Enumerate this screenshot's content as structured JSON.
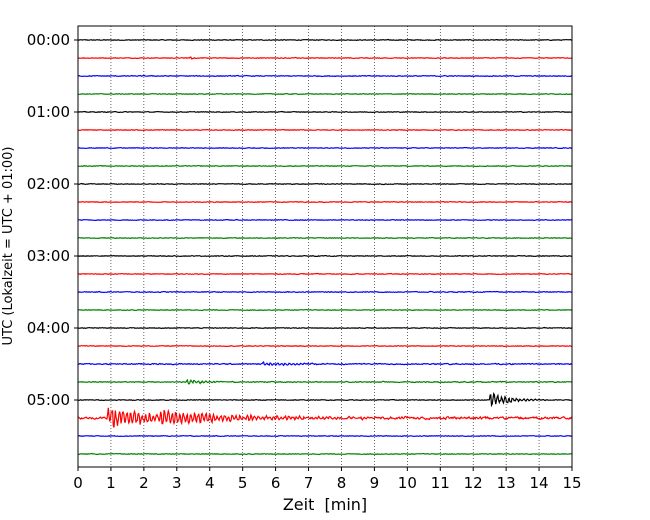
{
  "chart_data": {
    "type": "line",
    "title": "",
    "xlabel": "Zeit  [min]",
    "ylabel": "UTC (Lokalzeit = UTC + 01:00)",
    "xlim": [
      0,
      15
    ],
    "x_ticks": [
      0,
      1,
      2,
      3,
      4,
      5,
      6,
      7,
      8,
      9,
      10,
      11,
      12,
      13,
      14,
      15
    ],
    "grid": "vertical dotted",
    "colors": [
      "#000000",
      "#ff0000",
      "#0000ff",
      "#008000"
    ],
    "y_ticks": [
      "00:00",
      "01:00",
      "02:00",
      "03:00",
      "04:00",
      "05:00"
    ],
    "traces": [
      {
        "start": "00:00",
        "color": "#000000",
        "noise": 0.06,
        "events": []
      },
      {
        "start": "00:15",
        "color": "#ff0000",
        "noise": 0.06,
        "events": [
          {
            "t": 3.4,
            "amp": 0.15,
            "dur": 0.4
          }
        ]
      },
      {
        "start": "00:30",
        "color": "#0000ff",
        "noise": 0.07,
        "events": []
      },
      {
        "start": "00:45",
        "color": "#008000",
        "noise": 0.06,
        "events": []
      },
      {
        "start": "01:00",
        "color": "#000000",
        "noise": 0.06,
        "events": []
      },
      {
        "start": "01:15",
        "color": "#ff0000",
        "noise": 0.06,
        "events": []
      },
      {
        "start": "01:30",
        "color": "#0000ff",
        "noise": 0.06,
        "events": []
      },
      {
        "start": "01:45",
        "color": "#008000",
        "noise": 0.06,
        "events": []
      },
      {
        "start": "02:00",
        "color": "#000000",
        "noise": 0.06,
        "events": [
          {
            "t": 1.3,
            "amp": 0.15,
            "dur": 0.2
          },
          {
            "t": 2.4,
            "amp": 0.12,
            "dur": 0.2
          }
        ]
      },
      {
        "start": "02:15",
        "color": "#ff0000",
        "noise": 0.06,
        "events": []
      },
      {
        "start": "02:30",
        "color": "#0000ff",
        "noise": 0.06,
        "events": []
      },
      {
        "start": "02:45",
        "color": "#008000",
        "noise": 0.06,
        "events": []
      },
      {
        "start": "03:00",
        "color": "#000000",
        "noise": 0.06,
        "events": []
      },
      {
        "start": "03:15",
        "color": "#ff0000",
        "noise": 0.06,
        "events": []
      },
      {
        "start": "03:30",
        "color": "#0000ff",
        "noise": 0.07,
        "events": []
      },
      {
        "start": "03:45",
        "color": "#008000",
        "noise": 0.06,
        "events": []
      },
      {
        "start": "04:00",
        "color": "#000000",
        "noise": 0.06,
        "events": []
      },
      {
        "start": "04:15",
        "color": "#ff0000",
        "noise": 0.06,
        "events": []
      },
      {
        "start": "04:30",
        "color": "#0000ff",
        "noise": 0.09,
        "events": [
          {
            "t": 5.6,
            "amp": 0.2,
            "dur": 3.0
          }
        ]
      },
      {
        "start": "04:45",
        "color": "#008000",
        "noise": 0.08,
        "events": [
          {
            "t": 3.3,
            "amp": 0.3,
            "dur": 1.5
          }
        ]
      },
      {
        "start": "05:00",
        "color": "#000000",
        "noise": 0.06,
        "events": [
          {
            "t": 12.5,
            "amp": 0.9,
            "dur": 1.6
          }
        ]
      },
      {
        "start": "05:15",
        "color": "#ff0000",
        "noise": 0.18,
        "events": [
          {
            "t": 0.9,
            "amp": 1.3,
            "dur": 4.5
          },
          {
            "t": 2.5,
            "amp": 0.5,
            "dur": 10.0
          }
        ]
      },
      {
        "start": "05:30",
        "color": "#0000ff",
        "noise": 0.06,
        "events": []
      },
      {
        "start": "05:45",
        "color": "#008000",
        "noise": 0.06,
        "events": []
      }
    ]
  }
}
